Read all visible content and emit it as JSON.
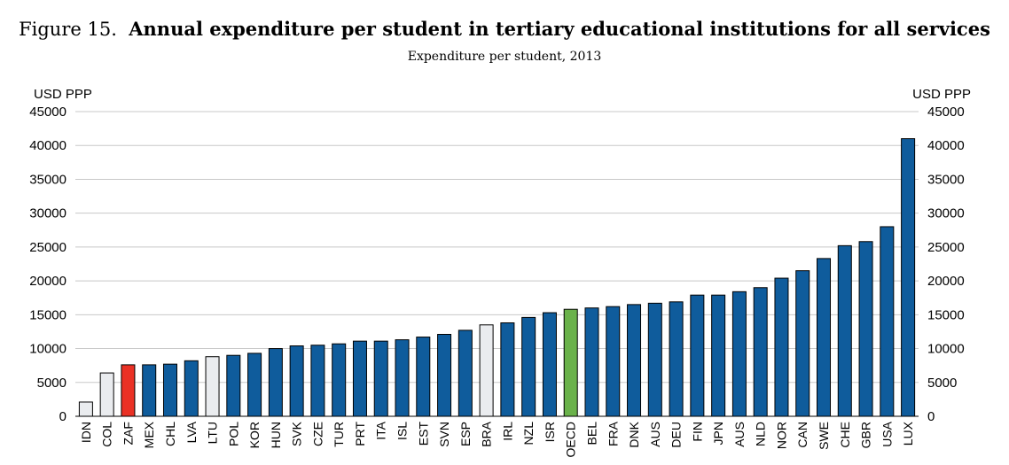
{
  "figure": {
    "label": "Figure 15.",
    "title": "Annual expenditure per student in tertiary educational institutions for all services",
    "subtitle": "Expenditure per student, 2013"
  },
  "chart_data": {
    "type": "bar",
    "ylabel_left": "USD PPP",
    "ylabel_right": "USD PPP",
    "ylim": [
      0,
      45000
    ],
    "yticks": [
      0,
      5000,
      10000,
      15000,
      20000,
      25000,
      30000,
      35000,
      40000,
      45000
    ],
    "grid": true,
    "categories": [
      "IDN",
      "COL",
      "ZAF",
      "MEX",
      "CHL",
      "LVA",
      "LTU",
      "POL",
      "KOR",
      "HUN",
      "SVK",
      "CZE",
      "TUR",
      "PRT",
      "ITA",
      "ISL",
      "EST",
      "SVN",
      "ESP",
      "BRA",
      "IRL",
      "NZL",
      "ISR",
      "OECD",
      "BEL",
      "FRA",
      "DNK",
      "AUS",
      "DEU",
      "FIN",
      "JPN",
      "AUS",
      "NLD",
      "NOR",
      "CAN",
      "SWE",
      "CHE",
      "GBR",
      "USA",
      "LUX"
    ],
    "values": [
      2100,
      6400,
      7600,
      7600,
      7700,
      8200,
      8800,
      9000,
      9300,
      10000,
      10400,
      10500,
      10700,
      11100,
      11100,
      11300,
      11700,
      12100,
      12700,
      13500,
      13800,
      14600,
      15300,
      15800,
      16000,
      16200,
      16500,
      16700,
      16900,
      17900,
      17900,
      18400,
      19000,
      20400,
      21500,
      23300,
      25200,
      25800,
      28000,
      41000
    ],
    "colors": {
      "default": "#0f5c9c",
      "partner": "#eaecef",
      "highlight": "#ea3125",
      "average": "#6ab24a",
      "gridline": "#c8c8c8"
    },
    "highlight_category": "ZAF",
    "average_category": "OECD",
    "partner_categories": [
      "IDN",
      "COL",
      "LTU",
      "BRA"
    ]
  }
}
